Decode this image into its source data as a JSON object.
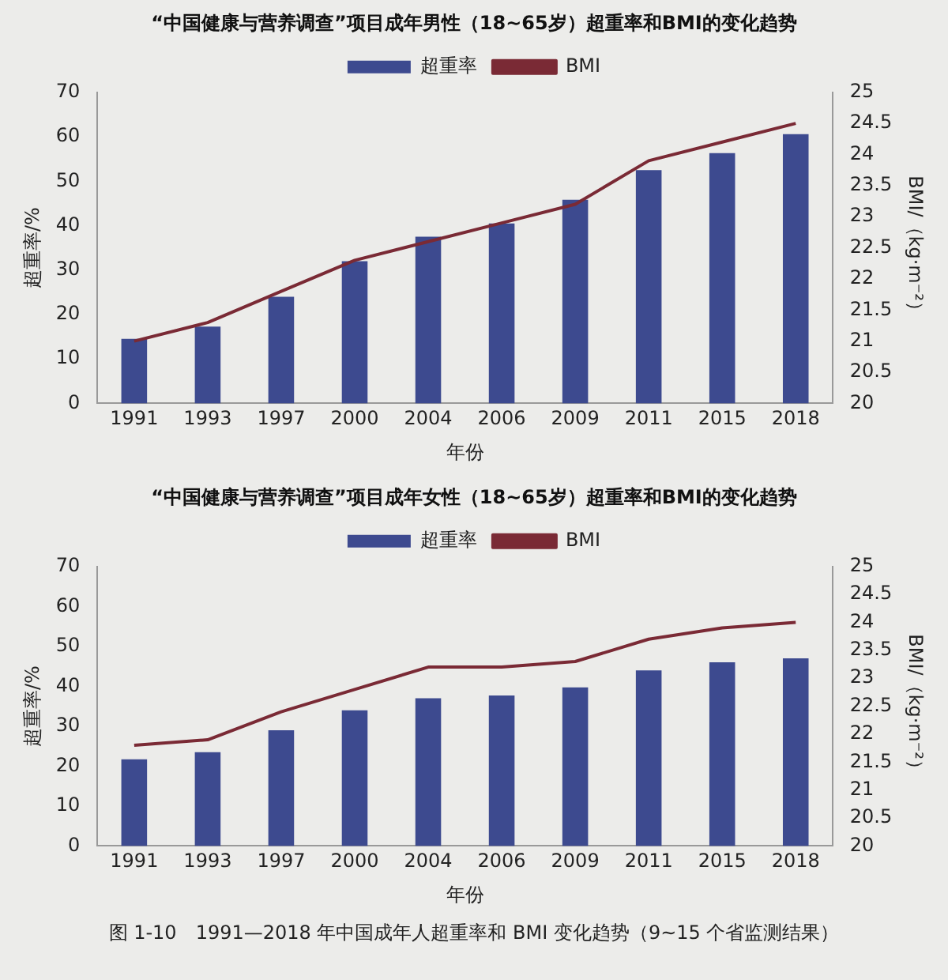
{
  "chart_data": [
    {
      "type": "bar",
      "title": "“中国健康与营养调查”项目成年男性（18~65岁）超重率和BMI的变化趋势",
      "xlabel": "年份",
      "ylabel": "超重率/%",
      "y2label": "BMI/（kg·m⁻²）",
      "categories": [
        "1991",
        "1993",
        "1997",
        "2000",
        "2004",
        "2006",
        "2009",
        "2011",
        "2015",
        "2018"
      ],
      "series": [
        {
          "name": "超重率",
          "color": "#3d4a8f",
          "values": [
            14.5,
            17.3,
            24,
            32,
            37.5,
            40.5,
            45.8,
            52.5,
            56.3,
            60.6
          ]
        },
        {
          "name": "BMI",
          "type": "line",
          "axis": "y2",
          "color": "#7a2a35",
          "values": [
            21.0,
            21.3,
            21.8,
            22.3,
            22.6,
            22.9,
            23.2,
            23.9,
            24.2,
            24.5
          ]
        }
      ],
      "ylim": [
        0,
        70
      ],
      "yticks": [
        0,
        10,
        20,
        30,
        40,
        50,
        60,
        70
      ],
      "y2lim": [
        20,
        25
      ],
      "y2ticks": [
        20,
        20.5,
        21,
        21.5,
        22,
        22.5,
        23,
        23.5,
        24,
        24.5,
        25
      ],
      "legend": "top",
      "grid": false,
      "marker": "none"
    },
    {
      "type": "bar",
      "title": "“中国健康与营养调查”项目成年女性（18~65岁）超重率和BMI的变化趋势",
      "xlabel": "年份",
      "ylabel": "超重率/%",
      "y2label": "BMI/（kg·m⁻²）",
      "categories": [
        "1991",
        "1993",
        "1997",
        "2000",
        "2004",
        "2006",
        "2009",
        "2011",
        "2015",
        "2018"
      ],
      "series": [
        {
          "name": "超重率",
          "color": "#3d4a8f",
          "values": [
            21.7,
            23.5,
            29,
            34,
            37,
            37.7,
            39.7,
            44,
            46,
            47
          ]
        },
        {
          "name": "BMI",
          "type": "line",
          "axis": "y2",
          "color": "#7a2a35",
          "values": [
            21.8,
            21.9,
            22.4,
            22.8,
            23.2,
            23.2,
            23.3,
            23.7,
            23.9,
            24.0
          ]
        }
      ],
      "ylim": [
        0,
        70
      ],
      "yticks": [
        0,
        10,
        20,
        30,
        40,
        50,
        60,
        70
      ],
      "y2lim": [
        20,
        25
      ],
      "y2ticks": [
        20,
        20.5,
        21,
        21.5,
        22,
        22.5,
        23,
        23.5,
        24,
        24.5,
        25
      ],
      "legend": "top",
      "grid": false,
      "marker": "none",
      "annotations": [
        "图 1-10　1991—2018 年中国成年人超重率和 BMI 变化趋势（9~15 个省监测结果）"
      ]
    }
  ]
}
